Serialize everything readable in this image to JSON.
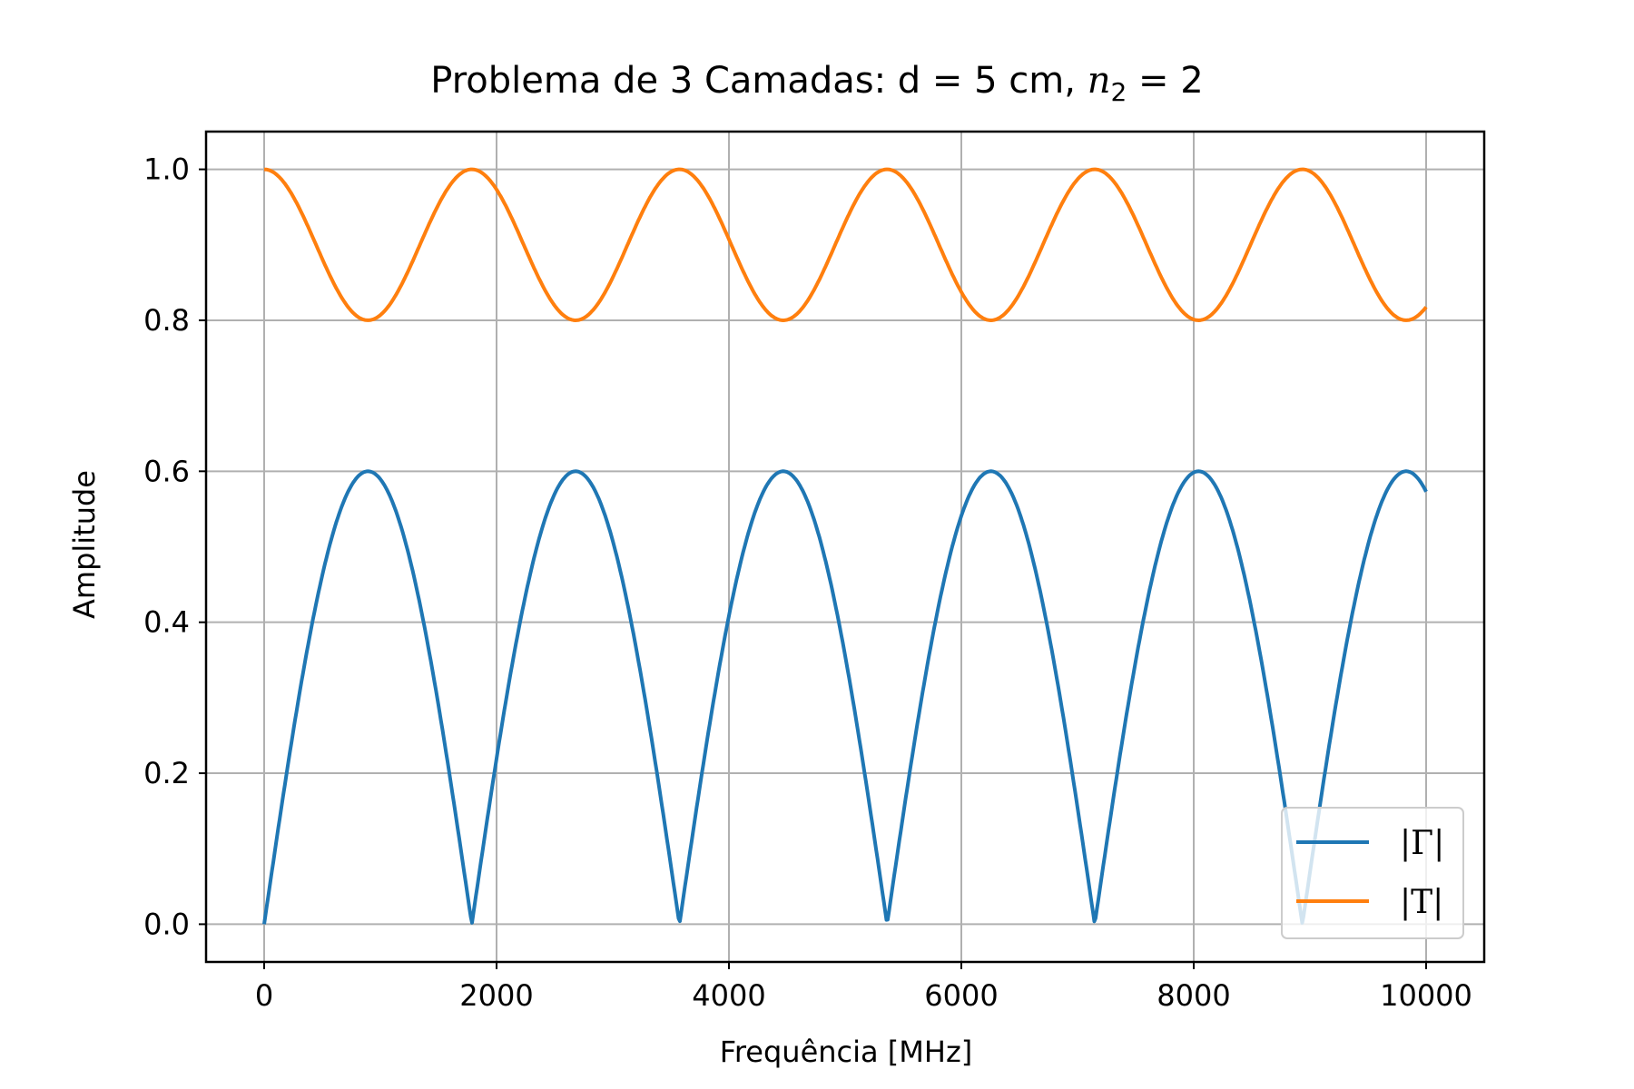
{
  "chart_data": {
    "type": "line",
    "title": "Problema de 3 Camadas: d = 5 cm, ",
    "title_math_var": "n",
    "title_math_sub": "2",
    "title_math_rest": " = 2",
    "xlabel": "Frequência [MHz]",
    "ylabel": "Amplitude",
    "xlim": [
      -500,
      10500
    ],
    "ylim": [
      -0.05,
      1.05
    ],
    "x_ticks": [
      0,
      2000,
      4000,
      6000,
      8000,
      10000
    ],
    "x_tick_labels": [
      "0",
      "2000",
      "4000",
      "6000",
      "8000",
      "10000"
    ],
    "y_ticks": [
      0.0,
      0.2,
      0.4,
      0.6,
      0.8,
      1.0
    ],
    "y_tick_labels": [
      "0.0",
      "0.2",
      "0.4",
      "0.6",
      "0.8",
      "1.0"
    ],
    "grid": true,
    "legend_position": "lower right",
    "x_range": [
      0,
      10000
    ],
    "period_mhz": 1787,
    "series": [
      {
        "name": "|Γ|",
        "color": "#1f77b4",
        "peak": 0.6,
        "trough": 0.0
      },
      {
        "name": "|T|",
        "color": "#ff7f0e",
        "peak": 1.0,
        "trough": 0.8
      }
    ]
  }
}
